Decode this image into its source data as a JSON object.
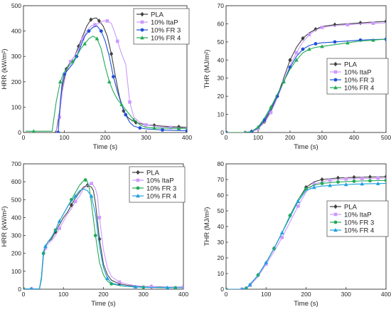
{
  "chart_data": [
    {
      "type": "line",
      "xlabel": "Time (s)",
      "ylabel": "HRR (kW/m²)",
      "xlim": [
        0,
        400
      ],
      "ylim": [
        0,
        500
      ],
      "xticks": [
        "0",
        "100",
        "200",
        "300",
        "400"
      ],
      "yticks": [
        "0",
        "100",
        "200",
        "300",
        "400",
        "500"
      ],
      "legend_position": "top-right",
      "series": [
        {
          "name": "PLA",
          "color": "#404040",
          "marker": "diamond",
          "x": [
            80,
            88,
            95,
            105,
            115,
            125,
            135,
            145,
            155,
            165,
            172,
            178,
            185,
            195,
            205,
            215,
            225,
            235,
            245,
            255,
            265,
            275,
            285,
            300,
            320,
            340,
            360,
            380,
            400
          ],
          "y": [
            0,
            80,
            180,
            250,
            280,
            300,
            340,
            380,
            420,
            445,
            450,
            452,
            440,
            420,
            380,
            310,
            220,
            140,
            85,
            60,
            48,
            40,
            35,
            30,
            28,
            25,
            23,
            22,
            20
          ]
        },
        {
          "name": "10% ItaP",
          "color": "#cc99ff",
          "marker": "square",
          "x": [
            80,
            88,
            95,
            105,
            115,
            125,
            135,
            145,
            155,
            165,
            175,
            185,
            195,
            205,
            215,
            222,
            230,
            240,
            250,
            260,
            270,
            285,
            300,
            320,
            340,
            360,
            380,
            400
          ],
          "y": [
            0,
            60,
            160,
            240,
            280,
            300,
            330,
            370,
            400,
            420,
            425,
            430,
            440,
            440,
            430,
            400,
            360,
            310,
            270,
            120,
            60,
            40,
            30,
            25,
            22,
            20,
            18,
            18
          ]
        },
        {
          "name": "10% FR 3",
          "color": "#1f4fd8",
          "marker": "circle",
          "x": [
            85,
            90,
            95,
            100,
            110,
            120,
            130,
            140,
            150,
            160,
            170,
            180,
            190,
            200,
            210,
            220,
            230,
            240,
            250,
            260,
            270,
            285,
            300,
            320,
            340,
            360,
            380,
            400
          ],
          "y": [
            0,
            120,
            200,
            230,
            250,
            270,
            300,
            340,
            380,
            400,
            415,
            420,
            400,
            360,
            300,
            220,
            160,
            110,
            70,
            40,
            25,
            18,
            14,
            12,
            10,
            9,
            8,
            7
          ]
        },
        {
          "name": "10% FR 4",
          "color": "#22aa55",
          "marker": "triangle",
          "x": [
            5,
            25,
            70,
            80,
            90,
            100,
            110,
            120,
            130,
            140,
            150,
            160,
            170,
            180,
            190,
            200,
            210,
            220,
            230,
            240,
            250,
            260,
            270,
            285,
            300,
            320,
            340,
            360,
            380,
            400
          ],
          "y": [
            5,
            5,
            5,
            120,
            200,
            240,
            260,
            280,
            300,
            330,
            350,
            370,
            380,
            370,
            330,
            260,
            200,
            160,
            130,
            110,
            90,
            70,
            50,
            30,
            20,
            18,
            17,
            17,
            16,
            16
          ]
        }
      ]
    },
    {
      "type": "line",
      "xlabel": "Time (s)",
      "ylabel": "THR (MJ/m²)",
      "xlim": [
        0,
        500
      ],
      "ylim": [
        0,
        70
      ],
      "xticks": [
        "0",
        "100",
        "200",
        "300",
        "400",
        "500"
      ],
      "yticks": [
        "0",
        "10",
        "20",
        "30",
        "40",
        "50",
        "60",
        "70"
      ],
      "legend_position": "middle-right",
      "series": [
        {
          "name": "PLA",
          "color": "#404040",
          "marker": "diamond",
          "x": [
            0,
            60,
            80,
            100,
            120,
            140,
            160,
            180,
            200,
            220,
            240,
            260,
            280,
            300,
            340,
            380,
            420,
            460,
            500
          ],
          "y": [
            0,
            0,
            0.5,
            2,
            6,
            12,
            20,
            30,
            40,
            47,
            52,
            55,
            57,
            58.5,
            59.5,
            60,
            60.5,
            61,
            61.3
          ]
        },
        {
          "name": "10% ItaP",
          "color": "#cc99ff",
          "marker": "square",
          "x": [
            0,
            60,
            80,
            100,
            120,
            140,
            160,
            180,
            200,
            220,
            240,
            260,
            280,
            300,
            340,
            380,
            420,
            460,
            500
          ],
          "y": [
            0,
            0,
            0.4,
            2,
            5.5,
            11,
            19,
            28,
            37,
            44,
            50,
            54,
            56.5,
            58,
            59,
            59.5,
            60,
            60.3,
            60.5
          ]
        },
        {
          "name": "10% FR 3",
          "color": "#1f4fd8",
          "marker": "circle",
          "x": [
            0,
            60,
            80,
            100,
            120,
            140,
            160,
            180,
            200,
            220,
            240,
            260,
            280,
            300,
            340,
            380,
            420,
            460,
            500
          ],
          "y": [
            0,
            0,
            0.5,
            2.5,
            7,
            13,
            20,
            28,
            36,
            42,
            46,
            48,
            49,
            49.5,
            50,
            50.5,
            51,
            51.3,
            51.5
          ]
        },
        {
          "name": "10% FR 4",
          "color": "#22aa55",
          "marker": "triangle",
          "x": [
            0,
            60,
            80,
            100,
            120,
            140,
            160,
            180,
            200,
            220,
            240,
            260,
            280,
            300,
            340,
            380,
            420,
            460,
            500
          ],
          "y": [
            0,
            0,
            0.6,
            3,
            8,
            14,
            21,
            28,
            35,
            40,
            44,
            46,
            47,
            47.5,
            48.5,
            49.5,
            50.5,
            51,
            51.5
          ]
        }
      ]
    },
    {
      "type": "line",
      "xlabel": "Time (s)",
      "ylabel": "HRR (kW/m²)",
      "xlim": [
        0,
        400
      ],
      "ylim": [
        0,
        700
      ],
      "xticks": [
        "0",
        "100",
        "200",
        "300",
        "400"
      ],
      "yticks": [
        "0",
        "100",
        "200",
        "300",
        "400",
        "500",
        "600",
        "700"
      ],
      "legend_position": "top-right",
      "series": [
        {
          "name": "PLA",
          "color": "#404040",
          "marker": "diamond",
          "x": [
            0,
            20,
            40,
            45,
            50,
            55,
            60,
            70,
            80,
            90,
            100,
            110,
            120,
            130,
            140,
            150,
            160,
            170,
            175,
            180,
            190,
            200,
            210,
            220,
            240,
            260,
            280,
            300,
            320,
            340,
            360,
            380,
            400
          ],
          "y": [
            2,
            2,
            2,
            60,
            200,
            240,
            260,
            280,
            320,
            360,
            400,
            430,
            470,
            510,
            540,
            570,
            580,
            570,
            550,
            480,
            280,
            140,
            80,
            50,
            30,
            22,
            18,
            15,
            14,
            13,
            12,
            12,
            12
          ]
        },
        {
          "name": "10% ItaP",
          "color": "#cc99ff",
          "marker": "square",
          "x": [
            0,
            20,
            40,
            45,
            50,
            55,
            60,
            70,
            80,
            90,
            100,
            110,
            120,
            130,
            140,
            150,
            160,
            170,
            175,
            180,
            185,
            190,
            200,
            210,
            220,
            240,
            260,
            280,
            300,
            320,
            340,
            360,
            380,
            400
          ],
          "y": [
            2,
            2,
            2,
            50,
            180,
            230,
            250,
            270,
            300,
            340,
            380,
            420,
            450,
            490,
            520,
            560,
            580,
            590,
            580,
            560,
            520,
            400,
            220,
            120,
            70,
            40,
            28,
            20,
            16,
            14,
            12,
            11,
            11,
            10
          ]
        },
        {
          "name": "10% FR 3",
          "color": "#22aa55",
          "marker": "circle",
          "x": [
            0,
            20,
            40,
            45,
            50,
            55,
            60,
            70,
            80,
            90,
            100,
            110,
            120,
            130,
            140,
            150,
            155,
            160,
            165,
            170,
            180,
            190,
            200,
            210,
            220,
            240,
            260,
            280,
            300,
            320,
            340,
            360,
            380,
            400
          ],
          "y": [
            2,
            2,
            2,
            60,
            200,
            240,
            260,
            290,
            330,
            380,
            420,
            460,
            500,
            540,
            580,
            605,
            610,
            600,
            560,
            480,
            300,
            150,
            80,
            45,
            30,
            20,
            15,
            12,
            11,
            10,
            9,
            9,
            8,
            8
          ]
        },
        {
          "name": "10% FR 4",
          "color": "#1a9fe0",
          "marker": "triangle",
          "x": [
            0,
            20,
            40,
            45,
            50,
            55,
            60,
            70,
            80,
            90,
            100,
            110,
            120,
            130,
            140,
            150,
            160,
            170,
            180,
            190,
            200,
            210,
            220,
            240,
            260,
            280,
            300,
            320,
            340,
            360,
            380,
            400
          ],
          "y": [
            2,
            2,
            2,
            70,
            210,
            240,
            260,
            290,
            330,
            380,
            420,
            460,
            490,
            520,
            550,
            560,
            550,
            520,
            420,
            240,
            120,
            60,
            35,
            22,
            16,
            13,
            11,
            10,
            9,
            9,
            8,
            8
          ]
        }
      ]
    },
    {
      "type": "line",
      "xlabel": "Time (s)",
      "ylabel": "THR (MJ/m²)",
      "xlim": [
        0,
        400
      ],
      "ylim": [
        0,
        80
      ],
      "xticks": [
        "0",
        "100",
        "200",
        "300",
        "400"
      ],
      "yticks": [
        "0",
        "10",
        "20",
        "30",
        "40",
        "50",
        "60",
        "70",
        "80"
      ],
      "legend_position": "middle-right",
      "series": [
        {
          "name": "PLA",
          "color": "#404040",
          "marker": "diamond",
          "x": [
            0,
            40,
            50,
            60,
            80,
            100,
            120,
            140,
            160,
            180,
            200,
            220,
            240,
            260,
            280,
            300,
            320,
            340,
            360,
            380,
            400
          ],
          "y": [
            0,
            0,
            0.5,
            3,
            9,
            17,
            26,
            36,
            47,
            57,
            65,
            68.5,
            70,
            70.5,
            71,
            71.2,
            71.4,
            71.5,
            71.6,
            71.7,
            71.8
          ]
        },
        {
          "name": "10% ItaP",
          "color": "#cc99ff",
          "marker": "square",
          "x": [
            0,
            40,
            50,
            60,
            80,
            100,
            120,
            140,
            160,
            180,
            200,
            220,
            240,
            260,
            280,
            300,
            320,
            340,
            360,
            380,
            400
          ],
          "y": [
            0,
            0,
            0.4,
            2.5,
            8,
            16,
            24,
            33,
            43,
            53,
            62,
            67,
            68.5,
            69.5,
            70,
            70.3,
            70.5,
            70.6,
            70.7,
            70.8,
            70.9
          ]
        },
        {
          "name": "10% FR 3",
          "color": "#22aa55",
          "marker": "circle",
          "x": [
            0,
            40,
            50,
            60,
            80,
            100,
            120,
            140,
            160,
            180,
            200,
            220,
            240,
            260,
            280,
            300,
            320,
            340,
            360,
            380,
            400
          ],
          "y": [
            0,
            0,
            0.5,
            3,
            9,
            17,
            26,
            36,
            47,
            57,
            64,
            66.5,
            67.5,
            68,
            68.4,
            68.7,
            68.9,
            69.1,
            69.2,
            69.3,
            69.4
          ]
        },
        {
          "name": "10% FR 4",
          "color": "#1a9fe0",
          "marker": "triangle",
          "x": [
            0,
            40,
            50,
            60,
            80,
            100,
            120,
            140,
            160,
            180,
            200,
            220,
            240,
            260,
            280,
            300,
            320,
            340,
            360,
            380,
            400
          ],
          "y": [
            0,
            0,
            0.5,
            3,
            9,
            17,
            26,
            36,
            46,
            56,
            63,
            65,
            65.8,
            66.2,
            66.5,
            66.8,
            67,
            67.2,
            67.3,
            67.4,
            67.5
          ]
        }
      ]
    }
  ]
}
